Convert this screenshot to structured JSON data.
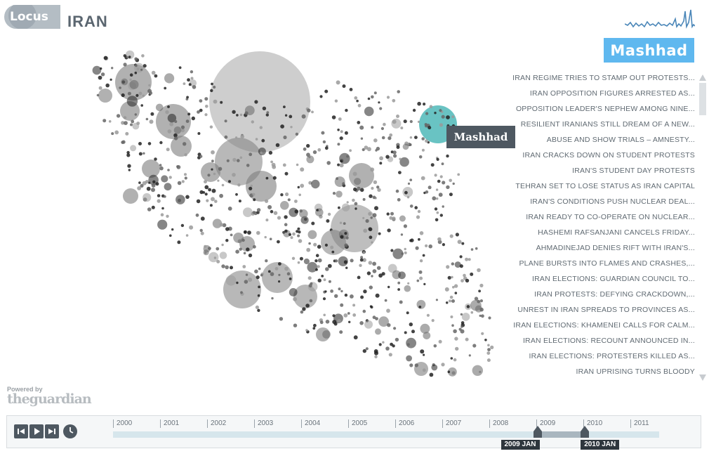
{
  "app": {
    "logo_text": "Locus",
    "page_title": "IRAN"
  },
  "selected_city": "Mashhad",
  "map": {
    "tooltip": "Mashhad",
    "highlight_color": "#4fb8b8",
    "bubble_color": "#7d7d7d"
  },
  "colors": {
    "accent": "#5fb8ef",
    "dark": "#4e5861",
    "sparkline": "#4a86b8"
  },
  "headlines": [
    "IRAN REGIME TRIES TO STAMP OUT PROTESTS...",
    "IRAN OPPOSITION FIGURES ARRESTED AS...",
    "OPPOSITION LEADER'S NEPHEW AMONG NINE...",
    "RESILIENT IRANIANS STILL DREAM OF A NEW...",
    "ABUSE AND SHOW TRIALS – AMNESTY...",
    "IRAN CRACKS DOWN ON STUDENT PROTESTS",
    "IRAN'S STUDENT DAY PROTESTS",
    "TEHRAN SET TO LOSE STATUS AS IRAN CAPITAL",
    "IRAN'S CONDITIONS PUSH NUCLEAR DEAL...",
    "IRAN READY TO CO-OPERATE ON NUCLEAR...",
    "HASHEMI RAFSANJANI CANCELS FRIDAY...",
    "AHMADINEJAD DENIES RIFT WITH IRAN'S...",
    "PLANE BURSTS INTO FLAMES AND CRASHES,...",
    "IRAN ELECTIONS: GUARDIAN COUNCIL TO...",
    "IRAN PROTESTS: DEFYING CRACKDOWN,...",
    "UNREST IN IRAN SPREADS TO PROVINCES AS...",
    "IRAN ELECTIONS: KHAMENEI CALLS FOR CALM...",
    "IRAN ELECTIONS: RECOUNT ANNOUNCED IN...",
    "IRAN ELECTIONS: PROTESTERS KILLED AS...",
    "IRAN UPRISING TURNS BLOODY"
  ],
  "branding": {
    "powered_by": "Powered by",
    "publisher": "theguardian"
  },
  "timeline": {
    "years": [
      "2000",
      "2001",
      "2002",
      "2003",
      "2004",
      "2005",
      "2006",
      "2007",
      "2008",
      "2009",
      "2010",
      "2011"
    ],
    "range_start_label": "2009 JAN",
    "range_end_label": "2010 JAN",
    "range_start_fraction": 0.777,
    "range_end_fraction": 0.864,
    "icons": [
      "skip-back-icon",
      "play-icon",
      "skip-forward-icon",
      "clock-icon"
    ]
  }
}
